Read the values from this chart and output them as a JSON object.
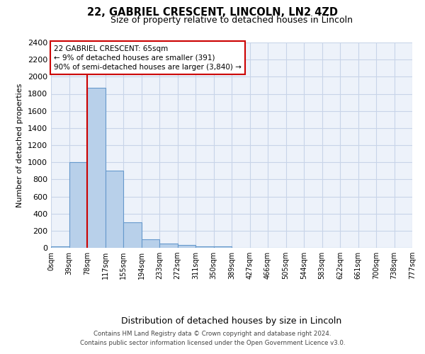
{
  "title": "22, GABRIEL CRESCENT, LINCOLN, LN2 4ZD",
  "subtitle": "Size of property relative to detached houses in Lincoln",
  "xlabel": "Distribution of detached houses by size in Lincoln",
  "ylabel": "Number of detached properties",
  "bin_labels": [
    "0sqm",
    "39sqm",
    "78sqm",
    "117sqm",
    "155sqm",
    "194sqm",
    "233sqm",
    "272sqm",
    "311sqm",
    "350sqm",
    "389sqm",
    "427sqm",
    "466sqm",
    "505sqm",
    "544sqm",
    "583sqm",
    "622sqm",
    "661sqm",
    "700sqm",
    "738sqm",
    "777sqm"
  ],
  "bar_heights": [
    20,
    1000,
    1870,
    900,
    300,
    100,
    50,
    30,
    20,
    15,
    0,
    0,
    0,
    0,
    0,
    0,
    0,
    0,
    0,
    0
  ],
  "bar_color": "#b8d0ea",
  "bar_edgecolor": "#6699cc",
  "ylim": [
    0,
    2400
  ],
  "yticks": [
    0,
    200,
    400,
    600,
    800,
    1000,
    1200,
    1400,
    1600,
    1800,
    2000,
    2200,
    2400
  ],
  "grid_color": "#c8d4e8",
  "property_line_x": 2.0,
  "property_line_color": "#cc0000",
  "annotation_text": "22 GABRIEL CRESCENT: 65sqm\n← 9% of detached houses are smaller (391)\n90% of semi-detached houses are larger (3,840) →",
  "annotation_box_color": "#cc0000",
  "footer_line1": "Contains HM Land Registry data © Crown copyright and database right 2024.",
  "footer_line2": "Contains public sector information licensed under the Open Government Licence v3.0.",
  "background_color": "#edf2fa",
  "title_fontsize": 10.5,
  "subtitle_fontsize": 9,
  "ylabel_fontsize": 8,
  "xlabel_fontsize": 9
}
